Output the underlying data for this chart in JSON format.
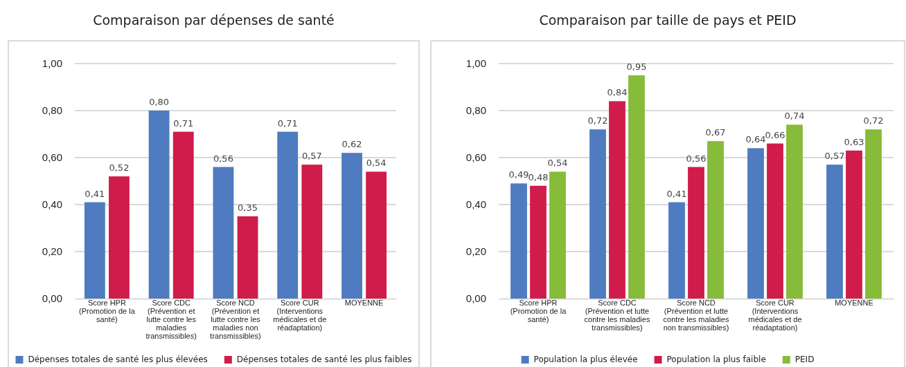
{
  "chart_data": [
    {
      "type": "bar",
      "title": "Comparaison par dépenses de santé",
      "categories": [
        "Score HPR (Promotion de la santé)",
        "Score CDC (Prévention et lutte contre les maladies transmissibles)",
        "Score NCD (Prévention et lutte contre les maladies non transmissibles)",
        "Score CUR (Interventions médicales et de réadaptation)",
        "MOYENNE"
      ],
      "series": [
        {
          "name": "Dépenses totales de santé les plus élevées",
          "color": "#4f7bc0",
          "values": [
            0.41,
            0.8,
            0.56,
            0.71,
            0.62
          ],
          "value_labels": [
            "0,41",
            "0,80",
            "0,56",
            "0,71",
            "0,62"
          ]
        },
        {
          "name": "Dépenses totales de santé les plus faibles",
          "color": "#d01c4b",
          "values": [
            0.52,
            0.71,
            0.35,
            0.57,
            0.54
          ],
          "value_labels": [
            "0,52",
            "0,71",
            "0,35",
            "0,57",
            "0,54"
          ]
        }
      ],
      "ylim": [
        0,
        1
      ],
      "yticks": [
        {
          "value": 0,
          "label": "0,00"
        },
        {
          "value": 0.2,
          "label": "0,20"
        },
        {
          "value": 0.4,
          "label": "0,40"
        },
        {
          "value": 0.6,
          "label": "0,60"
        },
        {
          "value": 0.8,
          "label": "0,80"
        },
        {
          "value": 1,
          "label": "1,00"
        }
      ],
      "grid": "y",
      "legend": "bottom"
    },
    {
      "type": "bar",
      "title": "Comparaison par taille de pays et PEID",
      "categories": [
        "Score HPR (Promotion de la santé)",
        "Score CDC (Prévention et lutte contre les maladies transmissibles)",
        "Score NCD (Prévention et lutte contre les maladies non transmissibles)",
        "Score CUR (Interventions médicales et de réadaptation)",
        "MOYENNE"
      ],
      "series": [
        {
          "name": "Population la plus élevée",
          "color": "#4f7bc0",
          "values": [
            0.49,
            0.72,
            0.41,
            0.64,
            0.57
          ],
          "value_labels": [
            "0,49",
            "0,72",
            "0,41",
            "0,64",
            "0,57"
          ]
        },
        {
          "name": "Population la plus faible",
          "color": "#d01c4b",
          "values": [
            0.48,
            0.84,
            0.56,
            0.66,
            0.63
          ],
          "value_labels": [
            "0,48",
            "0,84",
            "0,56",
            "0,66",
            "0,63"
          ]
        },
        {
          "name": "PEID",
          "color": "#87bb3a",
          "values": [
            0.54,
            0.95,
            0.67,
            0.74,
            0.72
          ],
          "value_labels": [
            "0,54",
            "0,95",
            "0,67",
            "0,74",
            "0,72"
          ]
        }
      ],
      "ylim": [
        0,
        1
      ],
      "yticks": [
        {
          "value": 0,
          "label": "0,00"
        },
        {
          "value": 0.2,
          "label": "0,20"
        },
        {
          "value": 0.4,
          "label": "0,40"
        },
        {
          "value": 0.6,
          "label": "0,60"
        },
        {
          "value": 0.8,
          "label": "0,80"
        },
        {
          "value": 1,
          "label": "1,00"
        }
      ],
      "grid": "y",
      "legend": "bottom"
    }
  ]
}
